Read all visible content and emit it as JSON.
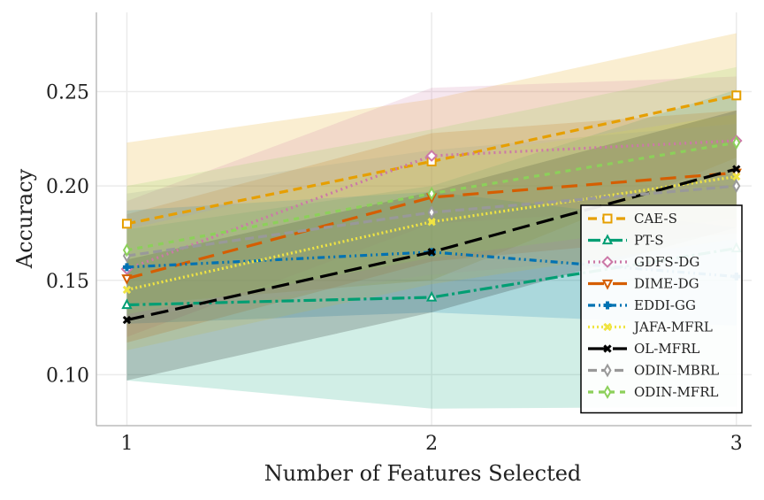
{
  "chart_data": {
    "type": "line",
    "title": "",
    "xlabel": "Number of Features Selected",
    "ylabel": "Accuracy",
    "x": [
      1,
      2,
      3
    ],
    "x_ticks": [
      "1",
      "2",
      "3"
    ],
    "y_ticks": [
      "0.10",
      "0.15",
      "0.20",
      "0.25"
    ],
    "xlim": [
      0.9,
      3.05
    ],
    "ylim": [
      0.073,
      0.292
    ],
    "grid": true,
    "legend_position": "lower-right",
    "series": [
      {
        "name": "CAE-S",
        "color": "#E69F00",
        "dash": "10,6",
        "marker": "square",
        "values": [
          0.18,
          0.213,
          0.248
        ],
        "lower": [
          0.137,
          0.15,
          0.215
        ],
        "upper": [
          0.223,
          0.246,
          0.281
        ]
      },
      {
        "name": "PT-S",
        "color": "#009E73",
        "dash": "14,4,3,4",
        "marker": "triangle",
        "values": [
          0.137,
          0.141,
          0.167
        ],
        "lower": [
          0.097,
          0.082,
          0.083
        ],
        "upper": [
          0.177,
          0.2,
          0.251
        ]
      },
      {
        "name": "GDFS-DG",
        "color": "#CC79A7",
        "dash": "2,4",
        "marker": "diamond",
        "values": [
          0.156,
          0.216,
          0.224
        ],
        "lower": [
          0.12,
          0.18,
          0.19
        ],
        "upper": [
          0.192,
          0.252,
          0.258
        ]
      },
      {
        "name": "DIME-DG",
        "color": "#D55E00",
        "dash": "18,10",
        "marker": "triangle-down",
        "values": [
          0.151,
          0.194,
          0.207
        ],
        "lower": [
          0.117,
          0.16,
          0.175
        ],
        "upper": [
          0.185,
          0.228,
          0.24
        ]
      },
      {
        "name": "EDDI-GG",
        "color": "#0072B2",
        "dash": "8,4,2,4,2,4",
        "marker": "plus",
        "values": [
          0.157,
          0.165,
          0.152
        ],
        "lower": [
          0.127,
          0.133,
          0.126
        ],
        "upper": [
          0.187,
          0.197,
          0.178
        ]
      },
      {
        "name": "JAFA-MFRL",
        "color": "#F0E442",
        "dash": "2,3",
        "marker": "x",
        "values": [
          0.145,
          0.181,
          0.205
        ],
        "lower": [
          0.113,
          0.148,
          0.172
        ],
        "upper": [
          0.177,
          0.214,
          0.238
        ]
      },
      {
        "name": "OL-MFRL",
        "color": "#000000",
        "dash": "20,8",
        "marker": "x",
        "values": [
          0.129,
          0.165,
          0.209
        ],
        "lower": [
          0.097,
          0.133,
          0.178
        ],
        "upper": [
          0.161,
          0.197,
          0.24
        ]
      },
      {
        "name": "ODIN-MBRL",
        "color": "#999999",
        "dash": "10,5",
        "marker": "thin-diamond",
        "values": [
          0.163,
          0.186,
          0.2
        ],
        "lower": [
          0.13,
          0.153,
          0.167
        ],
        "upper": [
          0.196,
          0.219,
          0.233
        ]
      },
      {
        "name": "ODIN-MFRL",
        "color": "#8CD05A",
        "dash": "6,6",
        "marker": "thin-diamond",
        "values": [
          0.166,
          0.196,
          0.223
        ],
        "lower": [
          0.132,
          0.162,
          0.183
        ],
        "upper": [
          0.2,
          0.23,
          0.263
        ]
      }
    ]
  }
}
